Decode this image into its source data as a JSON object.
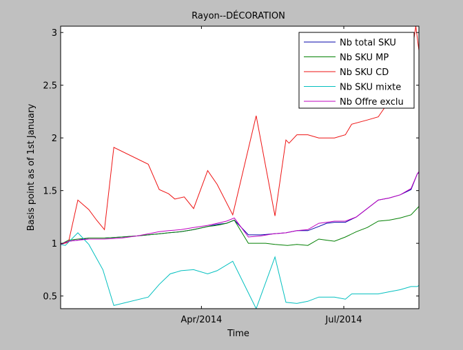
{
  "chart_data": {
    "type": "line",
    "title": "Rayon--DÉCORATION",
    "xlabel": "Time",
    "ylabel": "Basis point as of 1st January",
    "xlim": [
      "2014-01-01",
      "2014-08-18"
    ],
    "ylim": [
      0.38,
      3.06
    ],
    "x_ticks": [
      {
        "date": "2014-04-01",
        "label": "Apr/2014"
      },
      {
        "date": "2014-07-01",
        "label": "Jul/2014"
      }
    ],
    "y_ticks": [
      {
        "value": 0.5,
        "label": "0.5"
      },
      {
        "value": 1,
        "label": "1"
      },
      {
        "value": 1.5,
        "label": "1.5"
      },
      {
        "value": 2,
        "label": "2"
      },
      {
        "value": 2.5,
        "label": "2.5"
      },
      {
        "value": 3,
        "label": "3"
      }
    ],
    "grid": false,
    "legend_position": "top-right",
    "series": [
      {
        "name": "Nb total SKU",
        "color": "#0000aa",
        "points": [
          [
            "2014-01-01",
            0.99
          ],
          [
            "2014-01-06",
            1.02
          ],
          [
            "2014-01-12",
            1.03
          ],
          [
            "2014-01-19",
            1.05
          ],
          [
            "2014-01-29",
            1.05
          ],
          [
            "2014-02-09",
            1.06
          ],
          [
            "2014-02-19",
            1.07
          ],
          [
            "2014-02-26",
            1.08
          ],
          [
            "2014-03-05",
            1.09
          ],
          [
            "2014-03-11",
            1.1
          ],
          [
            "2014-03-19",
            1.11
          ],
          [
            "2014-03-27",
            1.13
          ],
          [
            "2014-04-05",
            1.16
          ],
          [
            "2014-04-11",
            1.18
          ],
          [
            "2014-04-17",
            1.19
          ],
          [
            "2014-04-22",
            1.22
          ],
          [
            "2014-05-01",
            1.08
          ],
          [
            "2014-05-09",
            1.08
          ],
          [
            "2014-05-17",
            1.09
          ],
          [
            "2014-05-25",
            1.1
          ],
          [
            "2014-06-01",
            1.12
          ],
          [
            "2014-06-08",
            1.12
          ],
          [
            "2014-06-15",
            1.16
          ],
          [
            "2014-06-20",
            1.19
          ],
          [
            "2014-06-25",
            1.2
          ],
          [
            "2014-07-02",
            1.2
          ],
          [
            "2014-07-09",
            1.25
          ],
          [
            "2014-07-23",
            1.41
          ],
          [
            "2014-07-30",
            1.43
          ],
          [
            "2014-08-06",
            1.46
          ],
          [
            "2014-08-13",
            1.51
          ],
          [
            "2014-08-17",
            1.66
          ],
          [
            "2014-08-18",
            1.67
          ]
        ]
      },
      {
        "name": "Nb SKU MP",
        "color": "#007f00",
        "points": [
          [
            "2014-01-01",
            0.99
          ],
          [
            "2014-01-06",
            1.03
          ],
          [
            "2014-01-12",
            1.04
          ],
          [
            "2014-01-19",
            1.05
          ],
          [
            "2014-01-29",
            1.05
          ],
          [
            "2014-02-09",
            1.06
          ],
          [
            "2014-02-19",
            1.07
          ],
          [
            "2014-02-26",
            1.08
          ],
          [
            "2014-03-05",
            1.09
          ],
          [
            "2014-03-11",
            1.1
          ],
          [
            "2014-03-19",
            1.11
          ],
          [
            "2014-03-27",
            1.13
          ],
          [
            "2014-04-05",
            1.16
          ],
          [
            "2014-04-11",
            1.17
          ],
          [
            "2014-04-17",
            1.19
          ],
          [
            "2014-04-22",
            1.22
          ],
          [
            "2014-05-01",
            1.0
          ],
          [
            "2014-05-06",
            1.0
          ],
          [
            "2014-05-12",
            1.0
          ],
          [
            "2014-05-18",
            0.99
          ],
          [
            "2014-05-26",
            0.98
          ],
          [
            "2014-06-01",
            0.99
          ],
          [
            "2014-06-08",
            0.98
          ],
          [
            "2014-06-15",
            1.04
          ],
          [
            "2014-06-20",
            1.03
          ],
          [
            "2014-06-25",
            1.02
          ],
          [
            "2014-07-02",
            1.06
          ],
          [
            "2014-07-09",
            1.11
          ],
          [
            "2014-07-16",
            1.15
          ],
          [
            "2014-07-23",
            1.21
          ],
          [
            "2014-07-30",
            1.22
          ],
          [
            "2014-08-06",
            1.24
          ],
          [
            "2014-08-13",
            1.27
          ],
          [
            "2014-08-18",
            1.35
          ]
        ]
      },
      {
        "name": "Nb SKU CD",
        "color": "#ee1111",
        "points": [
          [
            "2014-01-01",
            0.99
          ],
          [
            "2014-01-06",
            1.01
          ],
          [
            "2014-01-12",
            1.41
          ],
          [
            "2014-01-19",
            1.32
          ],
          [
            "2014-01-24",
            1.22
          ],
          [
            "2014-01-29",
            1.13
          ],
          [
            "2014-02-04",
            1.91
          ],
          [
            "2014-02-26",
            1.75
          ],
          [
            "2014-03-05",
            1.51
          ],
          [
            "2014-03-11",
            1.47
          ],
          [
            "2014-03-15",
            1.42
          ],
          [
            "2014-03-21",
            1.44
          ],
          [
            "2014-03-27",
            1.33
          ],
          [
            "2014-04-05",
            1.69
          ],
          [
            "2014-04-11",
            1.56
          ],
          [
            "2014-04-21",
            1.27
          ],
          [
            "2014-05-06",
            2.21
          ],
          [
            "2014-05-18",
            1.26
          ],
          [
            "2014-05-25",
            1.98
          ],
          [
            "2014-05-27",
            1.95
          ],
          [
            "2014-06-01",
            2.03
          ],
          [
            "2014-06-08",
            2.03
          ],
          [
            "2014-06-15",
            2.0
          ],
          [
            "2014-06-25",
            2.0
          ],
          [
            "2014-07-02",
            2.03
          ],
          [
            "2014-07-06",
            2.13
          ],
          [
            "2014-07-16",
            2.17
          ],
          [
            "2014-07-23",
            2.2
          ],
          [
            "2014-07-30",
            2.35
          ],
          [
            "2014-08-06",
            2.55
          ],
          [
            "2014-08-13",
            2.75
          ],
          [
            "2014-08-16",
            3.06
          ],
          [
            "2014-08-18",
            2.83
          ]
        ]
      },
      {
        "name": "Nb SKU mixte",
        "color": "#00bfbf",
        "points": [
          [
            "2014-01-01",
            0.99
          ],
          [
            "2014-01-04",
            0.98
          ],
          [
            "2014-01-12",
            1.1
          ],
          [
            "2014-01-19",
            0.99
          ],
          [
            "2014-01-28",
            0.75
          ],
          [
            "2014-02-04",
            0.41
          ],
          [
            "2014-02-26",
            0.49
          ],
          [
            "2014-03-05",
            0.61
          ],
          [
            "2014-03-12",
            0.71
          ],
          [
            "2014-03-19",
            0.74
          ],
          [
            "2014-03-27",
            0.75
          ],
          [
            "2014-04-05",
            0.71
          ],
          [
            "2014-04-11",
            0.74
          ],
          [
            "2014-04-21",
            0.83
          ],
          [
            "2014-05-06",
            0.38
          ],
          [
            "2014-05-18",
            0.87
          ],
          [
            "2014-05-25",
            0.44
          ],
          [
            "2014-06-01",
            0.43
          ],
          [
            "2014-06-08",
            0.45
          ],
          [
            "2014-06-15",
            0.49
          ],
          [
            "2014-06-25",
            0.49
          ],
          [
            "2014-07-02",
            0.47
          ],
          [
            "2014-07-06",
            0.52
          ],
          [
            "2014-07-23",
            0.52
          ],
          [
            "2014-07-30",
            0.54
          ],
          [
            "2014-08-06",
            0.56
          ],
          [
            "2014-08-13",
            0.59
          ],
          [
            "2014-08-17",
            0.59
          ],
          [
            "2014-08-18",
            0.6
          ]
        ]
      },
      {
        "name": "Nb Offre exclu",
        "color": "#bf00bf",
        "points": [
          [
            "2014-01-01",
            0.99
          ],
          [
            "2014-01-06",
            1.02
          ],
          [
            "2014-01-12",
            1.03
          ],
          [
            "2014-01-19",
            1.04
          ],
          [
            "2014-01-29",
            1.04
          ],
          [
            "2014-02-09",
            1.05
          ],
          [
            "2014-02-19",
            1.07
          ],
          [
            "2014-02-26",
            1.09
          ],
          [
            "2014-03-05",
            1.11
          ],
          [
            "2014-03-11",
            1.12
          ],
          [
            "2014-03-19",
            1.13
          ],
          [
            "2014-03-27",
            1.15
          ],
          [
            "2014-04-05",
            1.17
          ],
          [
            "2014-04-11",
            1.19
          ],
          [
            "2014-04-17",
            1.21
          ],
          [
            "2014-04-22",
            1.24
          ],
          [
            "2014-05-01",
            1.06
          ],
          [
            "2014-05-09",
            1.07
          ],
          [
            "2014-05-17",
            1.09
          ],
          [
            "2014-05-25",
            1.1
          ],
          [
            "2014-06-01",
            1.12
          ],
          [
            "2014-06-08",
            1.13
          ],
          [
            "2014-06-15",
            1.19
          ],
          [
            "2014-06-20",
            1.2
          ],
          [
            "2014-06-25",
            1.21
          ],
          [
            "2014-07-02",
            1.21
          ],
          [
            "2014-07-09",
            1.25
          ],
          [
            "2014-07-23",
            1.41
          ],
          [
            "2014-07-30",
            1.43
          ],
          [
            "2014-08-06",
            1.46
          ],
          [
            "2014-08-13",
            1.52
          ],
          [
            "2014-08-17",
            1.66
          ],
          [
            "2014-08-18",
            1.68
          ]
        ]
      }
    ]
  }
}
